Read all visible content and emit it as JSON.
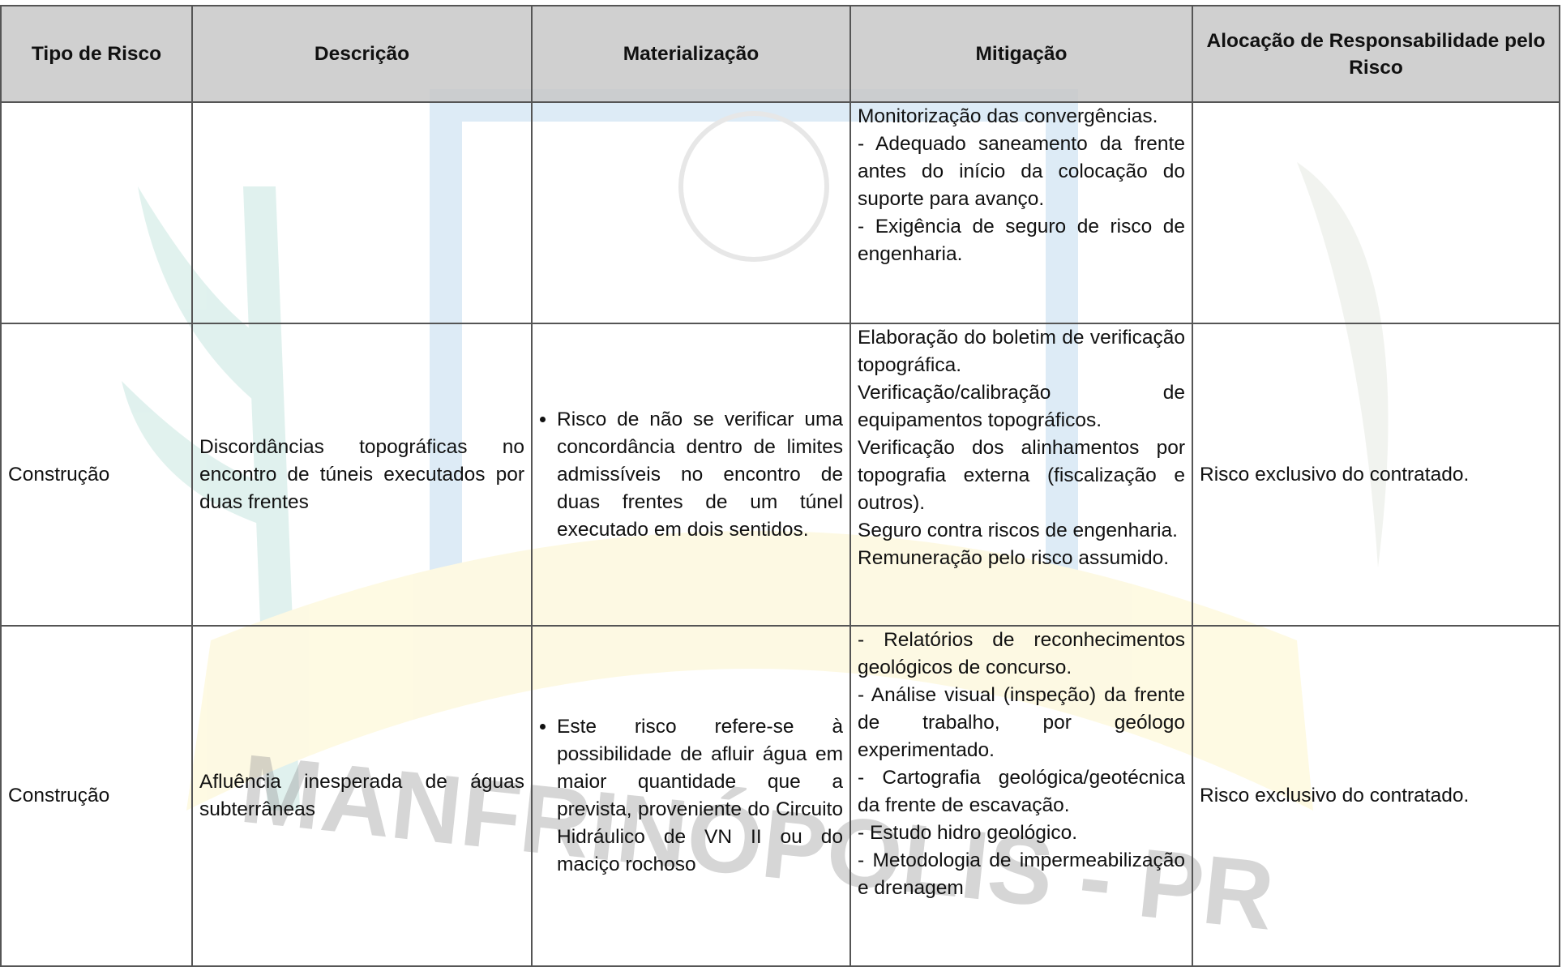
{
  "watermark": "MANFRINÓPOLIS - PR",
  "table": {
    "header": [
      "Tipo de Risco",
      "Descrição",
      "Materialização",
      "Mitigação",
      "Alocação de Responsabilidade pelo Risco"
    ],
    "rows": [
      {
        "mitigacao": [
          "Monitorização das convergências.",
          "- Adequado saneamento da frente antes do início da colocação do suporte para avanço.",
          "- Exigência de seguro de risco de engenharia."
        ]
      },
      {
        "tipo": "Construção",
        "descricao": "Discordâncias topográficas no encontro de túneis executados por duas frentes",
        "materializacao": [
          "Risco de não se verificar uma concordância dentro de limites admissíveis no encontro de duas frentes de um túnel executado em dois sentidos."
        ],
        "mitigacao": [
          "Elaboração do boletim de verificação topográfica.",
          "Verificação/calibração de equipamentos topográficos.",
          "Verificação dos alinhamentos por topografia externa (fiscalização e outros).",
          "Seguro contra riscos de engenharia.",
          "Remuneração pelo risco assumido."
        ],
        "alocacao": "Risco exclusivo do contratado."
      },
      {
        "tipo": "Construção",
        "descricao": "Afluência inesperada de águas subterrâneas",
        "materializacao": [
          "Este risco refere-se à possibilidade de afluir água em maior quantidade que a prevista, proveniente do Circuito Hidráulico de VN II ou do maciço rochoso"
        ],
        "mitigacao": [
          "- Relatórios de reconhecimentos geológicos de concurso.",
          "- Análise visual (inspeção) da frente de trabalho, por geólogo experimentado.",
          "- Cartografia geológica/geotécnica da frente de escavação.",
          "- Estudo hidro geológico.",
          "- Metodologia de impermeabilização e drenagem"
        ],
        "alocacao": "Risco exclusivo do contratado."
      }
    ]
  }
}
